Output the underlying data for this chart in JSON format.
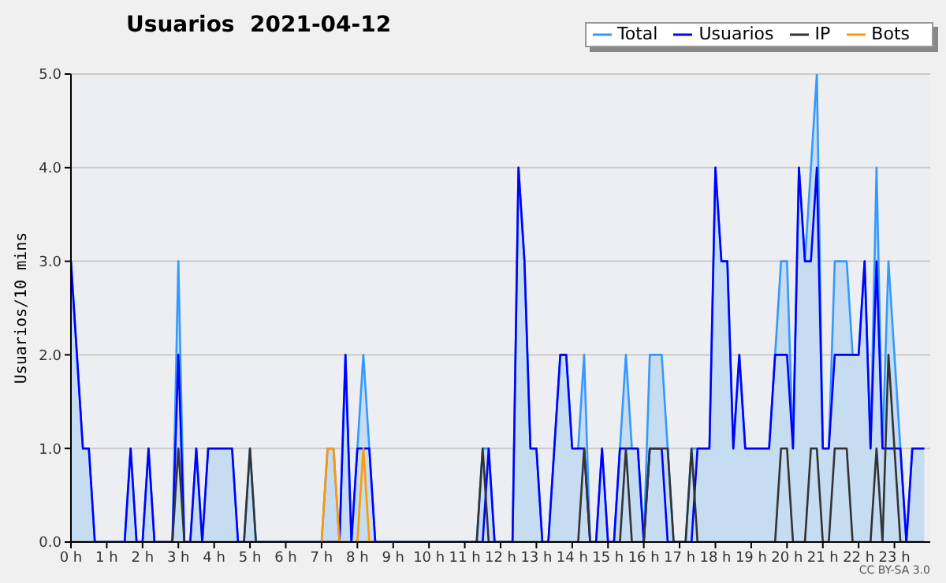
{
  "chart_data": {
    "type": "line",
    "title": "Usuarios  2021-04-12",
    "ylabel": "Usuarios/10 mins",
    "annotations": [
      "CC BY-SA 3.0"
    ],
    "x": [
      0,
      0.167,
      0.333,
      0.5,
      0.667,
      0.833,
      1,
      1.167,
      1.333,
      1.5,
      1.667,
      1.833,
      2,
      2.167,
      2.333,
      2.5,
      2.667,
      2.833,
      3,
      3.167,
      3.333,
      3.5,
      3.667,
      3.833,
      4,
      4.167,
      4.333,
      4.5,
      4.667,
      4.833,
      5,
      5.167,
      5.333,
      5.5,
      5.667,
      5.833,
      6,
      6.167,
      6.333,
      6.5,
      6.667,
      6.833,
      7,
      7.167,
      7.333,
      7.5,
      7.667,
      7.833,
      8,
      8.167,
      8.333,
      8.5,
      8.667,
      8.833,
      9,
      9.167,
      9.333,
      9.5,
      9.667,
      9.833,
      10,
      10.167,
      10.333,
      10.5,
      10.667,
      10.833,
      11,
      11.167,
      11.333,
      11.5,
      11.667,
      11.833,
      12,
      12.167,
      12.333,
      12.5,
      12.667,
      12.833,
      13,
      13.167,
      13.333,
      13.5,
      13.667,
      13.833,
      14,
      14.167,
      14.333,
      14.5,
      14.667,
      14.833,
      15,
      15.167,
      15.333,
      15.5,
      15.667,
      15.833,
      16,
      16.167,
      16.333,
      16.5,
      16.667,
      16.833,
      17,
      17.167,
      17.333,
      17.5,
      17.667,
      17.833,
      18,
      18.167,
      18.333,
      18.5,
      18.667,
      18.833,
      19,
      19.167,
      19.333,
      19.5,
      19.667,
      19.833,
      20,
      20.167,
      20.333,
      20.5,
      20.667,
      20.833,
      21,
      21.167,
      21.333,
      21.5,
      21.667,
      21.833,
      22,
      22.167,
      22.333,
      22.5,
      22.667,
      22.833,
      23,
      23.167,
      23.333,
      23.5,
      23.667,
      23.833
    ],
    "series": [
      {
        "name": "Total",
        "type": "area",
        "color": "#3399ff",
        "values": [
          3,
          2,
          1,
          1,
          0,
          0,
          0,
          0,
          0,
          0,
          1,
          0,
          0,
          1,
          0,
          0,
          0,
          0,
          3,
          0,
          0,
          1,
          0,
          1,
          1,
          1,
          1,
          1,
          0,
          0,
          1,
          0,
          0,
          0,
          0,
          0,
          0,
          0,
          0,
          0,
          0,
          0,
          0,
          1,
          1,
          0,
          2,
          0,
          1,
          2,
          1,
          0,
          0,
          0,
          0,
          0,
          0,
          0,
          0,
          0,
          0,
          0,
          0,
          0,
          0,
          0,
          0,
          0,
          0,
          1,
          1,
          0,
          0,
          0,
          0,
          4,
          3,
          1,
          1,
          0,
          0,
          1,
          2,
          2,
          1,
          1,
          2,
          0,
          0,
          1,
          0,
          0,
          1,
          2,
          1,
          1,
          0,
          2,
          2,
          2,
          1,
          0,
          0,
          0,
          1,
          1,
          1,
          1,
          4,
          3,
          3,
          1,
          2,
          1,
          1,
          1,
          1,
          1,
          2,
          3,
          3,
          1,
          4,
          3,
          4,
          5,
          1,
          1,
          3,
          3,
          3,
          2,
          2,
          3,
          1,
          4,
          1,
          3,
          2,
          1,
          0,
          1,
          1,
          1
        ]
      },
      {
        "name": "Usuarios",
        "color": "#0000ff",
        "values": [
          3,
          2,
          1,
          1,
          0,
          0,
          0,
          0,
          0,
          0,
          1,
          0,
          0,
          1,
          0,
          0,
          0,
          0,
          2,
          0,
          0,
          1,
          0,
          1,
          1,
          1,
          1,
          1,
          0,
          0,
          0,
          0,
          0,
          0,
          0,
          0,
          0,
          0,
          0,
          0,
          0,
          0,
          0,
          0,
          0,
          0,
          2,
          0,
          1,
          1,
          1,
          0,
          0,
          0,
          0,
          0,
          0,
          0,
          0,
          0,
          0,
          0,
          0,
          0,
          0,
          0,
          0,
          0,
          0,
          0,
          1,
          0,
          0,
          0,
          0,
          4,
          3,
          1,
          1,
          0,
          0,
          1,
          2,
          2,
          1,
          1,
          1,
          0,
          0,
          1,
          0,
          0,
          1,
          1,
          1,
          1,
          0,
          1,
          1,
          1,
          0,
          0,
          0,
          0,
          0,
          1,
          1,
          1,
          4,
          3,
          3,
          1,
          2,
          1,
          1,
          1,
          1,
          1,
          2,
          2,
          2,
          1,
          4,
          3,
          3,
          4,
          1,
          1,
          2,
          2,
          2,
          2,
          2,
          3,
          1,
          3,
          1,
          1,
          1,
          1,
          0,
          1,
          1,
          1
        ]
      },
      {
        "name": "IP",
        "color": "#333333",
        "values": [
          0,
          0,
          0,
          0,
          0,
          0,
          0,
          0,
          0,
          0,
          0,
          0,
          0,
          0,
          0,
          0,
          0,
          0,
          1,
          0,
          0,
          0,
          0,
          0,
          0,
          0,
          0,
          0,
          0,
          0,
          1,
          0,
          0,
          0,
          0,
          0,
          0,
          0,
          0,
          0,
          0,
          0,
          0,
          0,
          0,
          0,
          0,
          0,
          0,
          0,
          0,
          0,
          0,
          0,
          0,
          0,
          0,
          0,
          0,
          0,
          0,
          0,
          0,
          0,
          0,
          0,
          0,
          0,
          0,
          1,
          0,
          0,
          0,
          0,
          0,
          0,
          0,
          0,
          0,
          0,
          0,
          0,
          0,
          0,
          0,
          0,
          1,
          0,
          0,
          0,
          0,
          0,
          0,
          1,
          0,
          0,
          0,
          1,
          1,
          1,
          1,
          0,
          0,
          0,
          1,
          0,
          0,
          0,
          0,
          0,
          0,
          0,
          0,
          0,
          0,
          0,
          0,
          0,
          0,
          1,
          1,
          0,
          0,
          0,
          1,
          1,
          0,
          0,
          1,
          1,
          1,
          0,
          0,
          0,
          0,
          1,
          0,
          2,
          1,
          0,
          0,
          0,
          0,
          0
        ]
      },
      {
        "name": "Bots",
        "color": "#ff9900",
        "values": [
          null,
          null,
          null,
          null,
          null,
          null,
          null,
          null,
          null,
          null,
          null,
          null,
          null,
          null,
          null,
          null,
          null,
          null,
          null,
          null,
          null,
          null,
          null,
          null,
          null,
          null,
          null,
          null,
          null,
          null,
          null,
          null,
          null,
          null,
          null,
          null,
          null,
          null,
          null,
          null,
          null,
          null,
          0,
          1,
          1,
          0,
          null,
          null,
          0,
          1,
          0,
          null,
          null,
          null,
          null,
          null,
          null,
          null,
          null,
          null,
          null,
          null,
          null,
          null,
          null,
          null,
          null,
          null,
          null,
          null,
          null,
          null,
          null,
          null,
          null,
          null,
          null,
          null,
          null,
          null,
          null,
          null,
          null,
          null,
          null,
          null,
          null,
          null,
          null,
          null,
          null,
          null,
          null,
          null,
          null,
          null,
          null,
          null,
          null,
          null,
          null,
          null,
          null,
          null,
          null,
          null,
          null,
          null,
          null,
          null,
          null,
          null,
          null,
          null,
          null,
          null,
          null,
          null,
          null,
          null,
          null,
          null,
          null,
          null,
          null,
          null,
          null,
          null,
          null,
          null,
          null,
          null,
          null,
          null,
          null,
          null,
          null,
          null,
          null,
          null,
          null,
          null,
          null,
          null
        ]
      }
    ],
    "xlim": [
      0,
      24
    ],
    "xticks": [
      {
        "value": 0,
        "label": "0 h"
      },
      {
        "value": 1,
        "label": "1 h"
      },
      {
        "value": 2,
        "label": "2 h"
      },
      {
        "value": 3,
        "label": "3 h"
      },
      {
        "value": 4,
        "label": "4 h"
      },
      {
        "value": 5,
        "label": "5 h"
      },
      {
        "value": 6,
        "label": "6 h"
      },
      {
        "value": 7,
        "label": "7 h"
      },
      {
        "value": 8,
        "label": "8 h"
      },
      {
        "value": 9,
        "label": "9 h"
      },
      {
        "value": 10,
        "label": "10 h"
      },
      {
        "value": 11,
        "label": "11 h"
      },
      {
        "value": 12,
        "label": "12 h"
      },
      {
        "value": 13,
        "label": "13 h"
      },
      {
        "value": 14,
        "label": "14 h"
      },
      {
        "value": 15,
        "label": "15 h"
      },
      {
        "value": 16,
        "label": "16 h"
      },
      {
        "value": 17,
        "label": "17 h"
      },
      {
        "value": 18,
        "label": "18 h"
      },
      {
        "value": 19,
        "label": "19 h"
      },
      {
        "value": 20,
        "label": "20 h"
      },
      {
        "value": 21,
        "label": "21 h"
      },
      {
        "value": 22,
        "label": "22 h"
      },
      {
        "value": 23,
        "label": "23 h"
      }
    ],
    "ylim": [
      0,
      5
    ],
    "yticks": [
      {
        "value": 0,
        "label": "0.0"
      },
      {
        "value": 1,
        "label": "1.0"
      },
      {
        "value": 2,
        "label": "2.0"
      },
      {
        "value": 3,
        "label": "3.0"
      },
      {
        "value": 4,
        "label": "4.0"
      },
      {
        "value": 5,
        "label": "5.0"
      }
    ],
    "grid": "y",
    "legend": "top right",
    "marker": "none",
    "line_style": "solid"
  }
}
